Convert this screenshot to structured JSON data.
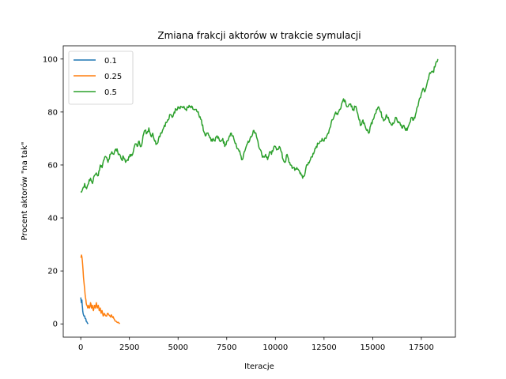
{
  "chart_data": {
    "type": "line",
    "title": "Zmiana frakcji aktorów w trakcie symulacji",
    "xlabel": "Iteracje",
    "ylabel": "Procent aktorów \"na tak\"",
    "xlim": [
      -900,
      19250
    ],
    "ylim": [
      -5,
      105
    ],
    "xticks": [
      0,
      2500,
      5000,
      7500,
      10000,
      12500,
      15000,
      17500
    ],
    "yticks": [
      0,
      20,
      40,
      60,
      80,
      100
    ],
    "grid": false,
    "legend_position": "top-left",
    "series": [
      {
        "name": "0.1",
        "color": "#1f77b4",
        "points": [
          [
            0,
            10
          ],
          [
            30,
            8
          ],
          [
            60,
            9
          ],
          [
            90,
            6
          ],
          [
            120,
            4
          ],
          [
            160,
            3
          ],
          [
            200,
            3
          ],
          [
            240,
            2
          ],
          [
            280,
            1
          ],
          [
            330,
            0.5
          ],
          [
            380,
            0
          ]
        ]
      },
      {
        "name": "0.25",
        "color": "#ff7f0e",
        "points": [
          [
            0,
            25
          ],
          [
            40,
            26
          ],
          [
            80,
            24
          ],
          [
            120,
            20
          ],
          [
            160,
            16
          ],
          [
            200,
            13
          ],
          [
            240,
            10
          ],
          [
            280,
            8
          ],
          [
            320,
            7
          ],
          [
            360,
            6
          ],
          [
            400,
            7
          ],
          [
            450,
            6
          ],
          [
            500,
            8
          ],
          [
            550,
            6
          ],
          [
            600,
            7
          ],
          [
            650,
            5
          ],
          [
            700,
            7
          ],
          [
            750,
            6
          ],
          [
            800,
            8
          ],
          [
            850,
            6
          ],
          [
            900,
            7
          ],
          [
            950,
            5
          ],
          [
            1000,
            6
          ],
          [
            1050,
            4
          ],
          [
            1100,
            5
          ],
          [
            1150,
            3
          ],
          [
            1200,
            4
          ],
          [
            1300,
            3
          ],
          [
            1400,
            4
          ],
          [
            1500,
            3
          ],
          [
            1600,
            3
          ],
          [
            1700,
            2
          ],
          [
            1800,
            1
          ],
          [
            1900,
            0.5
          ],
          [
            2000,
            0
          ]
        ]
      },
      {
        "name": "0.5",
        "color": "#2ca02c",
        "points": [
          [
            0,
            50
          ],
          [
            100,
            51
          ],
          [
            200,
            53
          ],
          [
            300,
            51
          ],
          [
            400,
            53
          ],
          [
            500,
            55
          ],
          [
            600,
            53
          ],
          [
            700,
            56
          ],
          [
            800,
            57
          ],
          [
            900,
            56
          ],
          [
            1000,
            60
          ],
          [
            1100,
            59
          ],
          [
            1200,
            62
          ],
          [
            1300,
            63
          ],
          [
            1400,
            61
          ],
          [
            1500,
            64
          ],
          [
            1600,
            65
          ],
          [
            1700,
            64
          ],
          [
            1800,
            66
          ],
          [
            1900,
            65
          ],
          [
            2000,
            64
          ],
          [
            2100,
            62
          ],
          [
            2200,
            63
          ],
          [
            2300,
            61
          ],
          [
            2400,
            62
          ],
          [
            2500,
            63
          ],
          [
            2600,
            64
          ],
          [
            2700,
            65
          ],
          [
            2800,
            68
          ],
          [
            2900,
            67
          ],
          [
            3000,
            69
          ],
          [
            3100,
            67
          ],
          [
            3200,
            71
          ],
          [
            3300,
            73
          ],
          [
            3400,
            72
          ],
          [
            3500,
            74
          ],
          [
            3600,
            71
          ],
          [
            3700,
            72
          ],
          [
            3800,
            69
          ],
          [
            3900,
            68
          ],
          [
            4000,
            70
          ],
          [
            4100,
            72
          ],
          [
            4200,
            73
          ],
          [
            4300,
            75
          ],
          [
            4400,
            76
          ],
          [
            4500,
            77
          ],
          [
            4600,
            79
          ],
          [
            4700,
            78
          ],
          [
            4800,
            80
          ],
          [
            4900,
            81
          ],
          [
            5000,
            82
          ],
          [
            5200,
            82
          ],
          [
            5400,
            81
          ],
          [
            5600,
            82
          ],
          [
            5800,
            81
          ],
          [
            6000,
            80
          ],
          [
            6100,
            78
          ],
          [
            6200,
            77
          ],
          [
            6300,
            73
          ],
          [
            6400,
            71
          ],
          [
            6500,
            72
          ],
          [
            6600,
            71
          ],
          [
            6700,
            69
          ],
          [
            6800,
            70
          ],
          [
            6900,
            69
          ],
          [
            7000,
            71
          ],
          [
            7100,
            70
          ],
          [
            7200,
            69
          ],
          [
            7300,
            70
          ],
          [
            7400,
            67
          ],
          [
            7500,
            69
          ],
          [
            7600,
            70
          ],
          [
            7700,
            72
          ],
          [
            7800,
            71
          ],
          [
            7900,
            69
          ],
          [
            8000,
            67
          ],
          [
            8100,
            66
          ],
          [
            8200,
            64
          ],
          [
            8300,
            62
          ],
          [
            8400,
            65
          ],
          [
            8500,
            67
          ],
          [
            8600,
            69
          ],
          [
            8700,
            70
          ],
          [
            8800,
            71
          ],
          [
            8900,
            73
          ],
          [
            9000,
            72
          ],
          [
            9100,
            69
          ],
          [
            9200,
            66
          ],
          [
            9300,
            64
          ],
          [
            9400,
            63
          ],
          [
            9500,
            64
          ],
          [
            9600,
            62
          ],
          [
            9700,
            65
          ],
          [
            9800,
            64
          ],
          [
            9900,
            66
          ],
          [
            10000,
            67
          ],
          [
            10100,
            66
          ],
          [
            10200,
            67
          ],
          [
            10300,
            65
          ],
          [
            10400,
            62
          ],
          [
            10500,
            61
          ],
          [
            10600,
            64
          ],
          [
            10700,
            61
          ],
          [
            10800,
            60
          ],
          [
            10900,
            59
          ],
          [
            11000,
            58
          ],
          [
            11100,
            59
          ],
          [
            11200,
            58
          ],
          [
            11300,
            57
          ],
          [
            11400,
            55
          ],
          [
            11500,
            56
          ],
          [
            11600,
            60
          ],
          [
            11700,
            61
          ],
          [
            11800,
            62
          ],
          [
            11900,
            63
          ],
          [
            12000,
            65
          ],
          [
            12100,
            67
          ],
          [
            12200,
            68
          ],
          [
            12300,
            69
          ],
          [
            12400,
            70
          ],
          [
            12500,
            69
          ],
          [
            12600,
            70
          ],
          [
            12700,
            72
          ],
          [
            12800,
            74
          ],
          [
            12900,
            77
          ],
          [
            13000,
            78
          ],
          [
            13100,
            80
          ],
          [
            13200,
            79
          ],
          [
            13300,
            81
          ],
          [
            13400,
            83
          ],
          [
            13500,
            85
          ],
          [
            13600,
            84
          ],
          [
            13700,
            82
          ],
          [
            13800,
            83
          ],
          [
            13900,
            82
          ],
          [
            14000,
            81
          ],
          [
            14100,
            82
          ],
          [
            14200,
            80
          ],
          [
            14300,
            77
          ],
          [
            14400,
            75
          ],
          [
            14500,
            77
          ],
          [
            14600,
            75
          ],
          [
            14700,
            73
          ],
          [
            14800,
            72
          ],
          [
            14900,
            75
          ],
          [
            15000,
            77
          ],
          [
            15100,
            79
          ],
          [
            15200,
            81
          ],
          [
            15300,
            82
          ],
          [
            15400,
            80
          ],
          [
            15500,
            78
          ],
          [
            15600,
            77
          ],
          [
            15700,
            79
          ],
          [
            15800,
            78
          ],
          [
            15900,
            76
          ],
          [
            16000,
            75
          ],
          [
            16100,
            76
          ],
          [
            16200,
            78
          ],
          [
            16300,
            76
          ],
          [
            16400,
            76
          ],
          [
            16500,
            74
          ],
          [
            16600,
            75
          ],
          [
            16700,
            73
          ],
          [
            16800,
            74
          ],
          [
            16900,
            76
          ],
          [
            17000,
            78
          ],
          [
            17100,
            77
          ],
          [
            17200,
            79
          ],
          [
            17300,
            82
          ],
          [
            17400,
            85
          ],
          [
            17500,
            87
          ],
          [
            17600,
            89
          ],
          [
            17700,
            88
          ],
          [
            17800,
            91
          ],
          [
            17900,
            94
          ],
          [
            18000,
            95
          ],
          [
            18100,
            95
          ],
          [
            18200,
            97
          ],
          [
            18300,
            99
          ],
          [
            18350,
            100
          ]
        ]
      }
    ]
  }
}
